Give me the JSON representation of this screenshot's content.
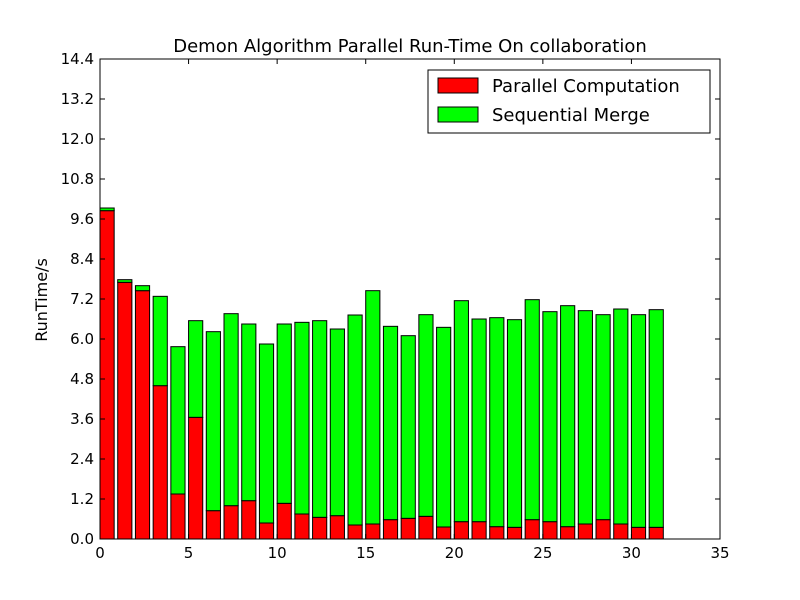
{
  "chart_data": {
    "type": "bar",
    "stacked": true,
    "title": "Demon Algorithm Parallel Run-Time On collaboration",
    "xlabel": "",
    "ylabel": "RunTime/s",
    "xlim": [
      0,
      35
    ],
    "ylim": [
      0,
      14.4
    ],
    "xticks": [
      "0",
      "5",
      "10",
      "15",
      "20",
      "25",
      "30",
      "35"
    ],
    "yticks": [
      "0.0",
      "1.2",
      "2.4",
      "3.6",
      "4.8",
      "6.0",
      "7.2",
      "8.4",
      "9.6",
      "10.8",
      "12.0",
      "13.2",
      "14.4"
    ],
    "grid": false,
    "legend_position": "top-right",
    "x": [
      0,
      1,
      2,
      3,
      4,
      5,
      6,
      7,
      8,
      9,
      10,
      11,
      12,
      13,
      14,
      15,
      16,
      17,
      18,
      19,
      20,
      21,
      22,
      23,
      24,
      25,
      26,
      27,
      28,
      29,
      30,
      31
    ],
    "series": [
      {
        "name": "Parallel Computation",
        "color": "#ff0000",
        "values": [
          9.85,
          7.7,
          7.45,
          4.6,
          1.35,
          3.65,
          0.85,
          1.0,
          1.15,
          0.48,
          1.07,
          0.75,
          0.65,
          0.7,
          0.42,
          0.45,
          0.58,
          0.62,
          0.68,
          0.36,
          0.52,
          0.52,
          0.37,
          0.35,
          0.58,
          0.52,
          0.37,
          0.45,
          0.58,
          0.45,
          0.35,
          0.35
        ]
      },
      {
        "name": "Sequential Merge",
        "color": "#00ff00",
        "values": [
          0.08,
          0.08,
          0.15,
          2.68,
          4.42,
          2.9,
          5.37,
          5.76,
          5.3,
          5.37,
          5.38,
          5.75,
          5.9,
          5.6,
          6.3,
          7.0,
          5.8,
          5.48,
          6.05,
          5.99,
          6.63,
          6.08,
          6.27,
          6.23,
          6.6,
          6.3,
          6.63,
          6.4,
          6.15,
          6.45,
          6.38,
          6.53
        ]
      }
    ]
  }
}
